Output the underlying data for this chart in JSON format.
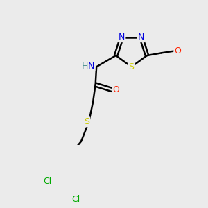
{
  "background_color": "#ebebeb",
  "figsize": [
    3.0,
    3.0
  ],
  "dpi": 100,
  "colors": {
    "C": "#000000",
    "N": "#0000dd",
    "O": "#ff2200",
    "S": "#cccc00",
    "Cl": "#00aa00",
    "H": "#4a9090",
    "bond": "#000000"
  }
}
